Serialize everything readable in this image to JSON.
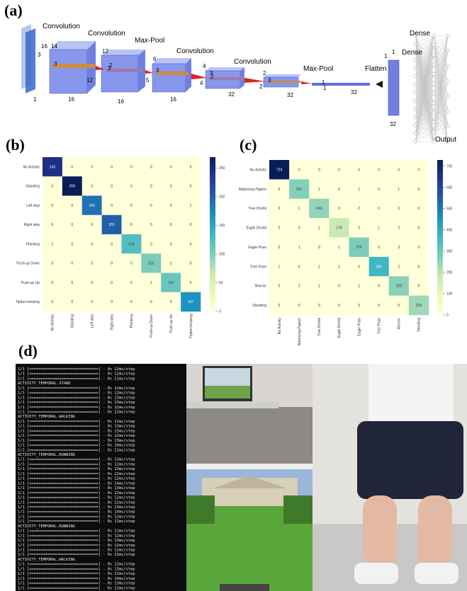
{
  "panels": {
    "a": "(a)",
    "b": "(b)",
    "c": "(c)",
    "d": "(d)"
  },
  "diagram": {
    "layers": [
      "Convolution",
      "Convolution",
      "Max-Pool",
      "Convolution",
      "Convolution",
      "Max-Pool",
      "Flatten",
      "Dense",
      "Dense",
      "Output"
    ],
    "dims": [
      "1",
      "16",
      "16",
      "16",
      "32",
      "32",
      "32",
      "32",
      "1",
      "1",
      "12",
      "12",
      "6",
      "5",
      "4",
      "4",
      "2",
      "2",
      "1",
      "1",
      "16",
      "14",
      "3",
      "3",
      "3",
      "3",
      "2",
      "2",
      "3",
      "3"
    ]
  },
  "chart_data": [
    {
      "type": "heatmap",
      "colormap": "YlGnBu",
      "categories": [
        "No Activity",
        "Standing",
        "Left step",
        "Right step",
        "Planking",
        "Push-up Down",
        "Push-up Up",
        "Tiptoe/Jumping"
      ],
      "values": [
        [
          243,
          0,
          0,
          0,
          0,
          0,
          0,
          0
        ],
        [
          0,
          269,
          0,
          0,
          0,
          0,
          0,
          0
        ],
        [
          0,
          0,
          189,
          0,
          0,
          0,
          0,
          1
        ],
        [
          0,
          0,
          0,
          201,
          0,
          0,
          0,
          0
        ],
        [
          1,
          0,
          0,
          0,
          124,
          0,
          0,
          0
        ],
        [
          0,
          0,
          0,
          0,
          0,
          102,
          2,
          0
        ],
        [
          0,
          0,
          0,
          0,
          0,
          1,
          112,
          0
        ],
        [
          0,
          0,
          0,
          0,
          0,
          0,
          0,
          167
        ]
      ],
      "clim": [
        0,
        269
      ],
      "cticks": [
        0,
        50,
        100,
        150,
        200,
        250
      ]
    },
    {
      "type": "heatmap",
      "colormap": "YlGnBu",
      "categories": [
        "No Activity",
        "Balancing Pigeon",
        "Tree Drishti",
        "Eagle Drishti",
        "Eagle Pose",
        "Tree Pose",
        "Warrior",
        "Standing"
      ],
      "values": [
        [
          729,
          0,
          0,
          0,
          0,
          0,
          0,
          0
        ],
        [
          0,
          267,
          1,
          0,
          1,
          0,
          1,
          0
        ],
        [
          0,
          1,
          249,
          0,
          2,
          0,
          3,
          0
        ],
        [
          0,
          0,
          1,
          178,
          3,
          1,
          2,
          0
        ],
        [
          0,
          1,
          0,
          1,
          276,
          0,
          3,
          0
        ],
        [
          1,
          0,
          1,
          2,
          0,
          365,
          2,
          0
        ],
        [
          0,
          2,
          1,
          0,
          1,
          0,
          259,
          0
        ],
        [
          0,
          0,
          0,
          0,
          0,
          0,
          0,
          233
        ]
      ],
      "clim": [
        0,
        729
      ],
      "cticks": [
        0,
        100,
        200,
        300,
        400,
        500,
        600,
        700
      ]
    }
  ],
  "terminal": {
    "lines": [
      "1/1 [==============================] - 0s 12ms/step",
      "1/1 [==============================] - 0s 12ms/step",
      "1/1 [==============================] - 0s 11ms/step",
      "ACTIVITY_TEMPORAL.STAND",
      "1/1 [==============================] - 0s 12ms/step",
      "1/1 [==============================] - 0s 11ms/step",
      "1/1 [==============================] - 0s 13ms/step",
      "1/1 [==============================] - 0s 13ms/step",
      "1/1 [==============================] - 0s 12ms/step",
      "1/1 [==============================] - 0s 12ms/step",
      "ACTIVITY_TEMPORAL.WALKING",
      "1/1 [==============================] - 0s 12ms/step",
      "1/1 [==============================] - 0s 13ms/step",
      "1/1 [==============================] - 0s 13ms/step",
      "1/1 [==============================] - 0s 12ms/step",
      "1/1 [==============================] - 0s 13ms/step",
      "1/1 [==============================] - 0s 10ms/step",
      "1/1 [==============================] - 0s 11ms/step",
      "ACTIVITY_TEMPORAL.RUNNING",
      "1/1 [==============================] - 0s 13ms/step",
      "1/1 [==============================] - 0s 12ms/step",
      "1/1 [==============================] - 0s 13ms/step",
      "1/1 [==============================] - 0s 12ms/step",
      "1/1 [==============================] - 0s 12ms/step",
      "1/1 [==============================] - 0s 14ms/step",
      "1/1 [==============================] - 0s 13ms/step",
      "1/1 [==============================] - 0s 12ms/step",
      "1/1 [==============================] - 0s 12ms/step",
      "1/1 [==============================] - 0s 12ms/step",
      "1/1 [==============================] - 0s 13ms/step",
      "1/1 [==============================] - 0s 14ms/step",
      "1/1 [==============================] - 0s 12ms/step",
      "1/1 [==============================] - 0s 11ms/step",
      "ACTIVITY_TEMPORAL.RUNNING",
      "1/1 [==============================] - 0s 11ms/step",
      "1/1 [==============================] - 0s 12ms/step",
      "1/1 [==============================] - 0s 13ms/step",
      "1/1 [==============================] - 0s 12ms/step",
      "1/1 [==============================] - 0s 12ms/step",
      "1/1 [==============================] - 0s 13ms/step",
      "ACTIVITY_TEMPORAL.WALKING",
      "1/1 [==============================] - 0s 12ms/step",
      "1/1 [==============================] - 0s 13ms/step",
      "1/1 [==============================] - 0s 12ms/step",
      "1/1 [==============================] - 0s 14ms/step",
      "1/1 [==============================] - 0s 13ms/step",
      "1/1 [==============================] - 0s 12ms/step"
    ]
  }
}
